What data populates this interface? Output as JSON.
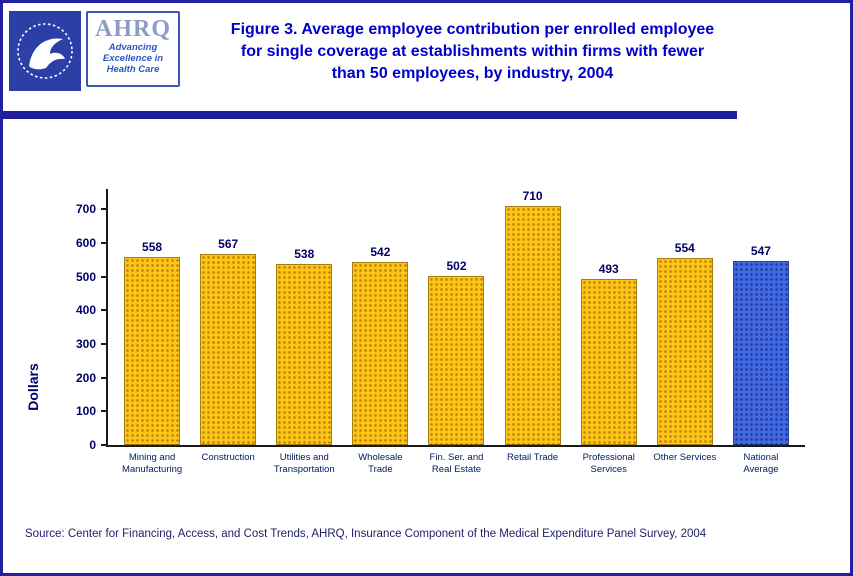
{
  "header": {
    "ahrq_logo": {
      "acronym": "AHRQ",
      "tagline_lines": [
        "Advancing",
        "Excellence in",
        "Health Care"
      ]
    },
    "title_lines": [
      "Figure 3. Average employee contribution per enrolled employee",
      "for single coverage at establishments within firms with fewer",
      "than 50 employees, by industry, 2004"
    ]
  },
  "chart_data": {
    "type": "bar",
    "categories": [
      [
        "Mining and",
        "Manufacturing"
      ],
      [
        "Construction"
      ],
      [
        "Utilities and",
        "Transportation"
      ],
      [
        "Wholesale",
        "Trade"
      ],
      [
        "Fin. Ser. and",
        "Real Estate"
      ],
      [
        "Retail Trade"
      ],
      [
        "Professional",
        "Services"
      ],
      [
        "Other Services"
      ],
      [
        "National",
        "Average"
      ]
    ],
    "values": [
      558,
      567,
      538,
      542,
      502,
      710,
      493,
      554,
      547
    ],
    "value_labels": true,
    "ylabel": "Dollars",
    "yticks": [
      0,
      100,
      200,
      300,
      400,
      500,
      600,
      700
    ],
    "ylim": [
      0,
      760
    ],
    "grid": false,
    "legend": "none",
    "bar_colors": {
      "default": "#FFC416",
      "highlight": "#4169E1"
    },
    "highlight_index": 8
  },
  "footer": {
    "source": "Source: Center for Financing, Access, and Cost Trends, AHRQ, Insurance Component of the Medical Expenditure Panel Survey, 2004"
  },
  "colors": {
    "page_border": "#2020A0",
    "divider": "#1F1F9E",
    "title_text": "#0000CC",
    "axis_text": "#000066",
    "bar_default": "#FFC416",
    "bar_highlight": "#4169E1"
  }
}
